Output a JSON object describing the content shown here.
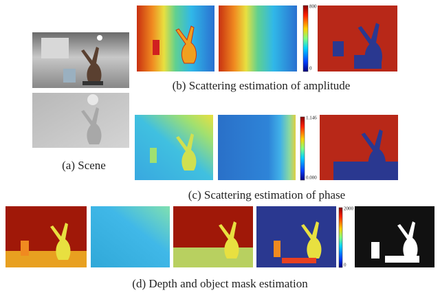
{
  "figure": {
    "captions": {
      "a": "(a) Scene",
      "b": "(b) Scattering estimation of amplitude",
      "c": "(c) Scattering estimation of phase",
      "d": "(d) Depth and object mask estimation"
    },
    "colorbars": [
      {
        "max": "800",
        "min": "0"
      },
      {
        "max": "1.146",
        "min": "0.000"
      },
      {
        "max": "2000",
        "min": "0"
      }
    ]
  }
}
